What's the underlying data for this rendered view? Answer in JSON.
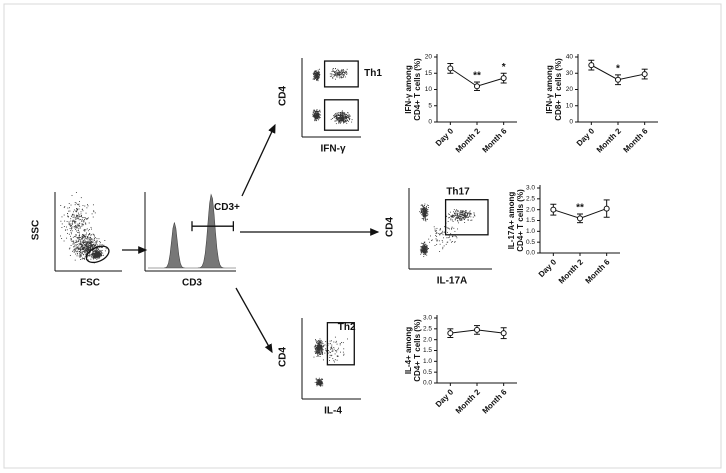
{
  "flow_panels": {
    "scatter": {
      "y_label": "SSC",
      "x_label": "FSC"
    },
    "histogram": {
      "gate": "CD3+",
      "x_label": "CD3"
    },
    "th1": {
      "y_label": "CD4",
      "x_label": "IFN-γ",
      "gate": "Th1"
    },
    "th17": {
      "y_label": "CD4",
      "x_label": "IL-17A",
      "gate": "Th17"
    },
    "th2": {
      "y_label": "CD4",
      "x_label": "IL-4",
      "gate": "Th2"
    }
  },
  "chart_data": [
    {
      "type": "line",
      "y_label": [
        "IFN-γ among",
        "CD4+ T cells (%)"
      ],
      "categories": [
        "Day 0",
        "Month 2",
        "Month 6"
      ],
      "values": [
        16.5,
        11,
        13.5
      ],
      "errors": [
        1.5,
        1.3,
        1.5
      ],
      "significance": [
        null,
        "**",
        "*"
      ],
      "ylim": [
        0,
        20
      ],
      "yticks": [
        0,
        5,
        10,
        15,
        20
      ],
      "color": "#111111"
    },
    {
      "type": "line",
      "y_label": [
        "IFN-γ among",
        "CD8+ T cells (%)"
      ],
      "categories": [
        "Day 0",
        "Month 2",
        "Month 6"
      ],
      "values": [
        35,
        26,
        29.5
      ],
      "errors": [
        3,
        3,
        3
      ],
      "significance": [
        null,
        "*",
        null
      ],
      "ylim": [
        0,
        40
      ],
      "yticks": [
        0,
        10,
        20,
        30,
        40
      ],
      "color": "#111111"
    },
    {
      "type": "line",
      "y_label": [
        "IL-17A+ among",
        "CD4+ T cells (%)"
      ],
      "categories": [
        "Day 0",
        "Month 2",
        "Month 6"
      ],
      "values": [
        2.0,
        1.6,
        2.05
      ],
      "errors": [
        0.25,
        0.2,
        0.4
      ],
      "significance": [
        null,
        "**",
        null
      ],
      "ylim": [
        0,
        3
      ],
      "yticks": [
        {
          "value": 0,
          "label": "0.0"
        },
        {
          "value": 0.5,
          "label": "0.5"
        },
        {
          "value": 1,
          "label": "1.0"
        },
        {
          "value": 1.5,
          "label": "1.5"
        },
        {
          "value": 2,
          "label": "2.0"
        },
        {
          "value": 2.5,
          "label": "2.5"
        },
        {
          "value": 3,
          "label": "3.0"
        }
      ],
      "color": "#111111"
    },
    {
      "type": "line",
      "y_label": [
        "IL-4+ among",
        "CD4+ T cells (%)"
      ],
      "categories": [
        "Day 0",
        "Month 2",
        "Month 6"
      ],
      "values": [
        2.3,
        2.45,
        2.3
      ],
      "errors": [
        0.2,
        0.2,
        0.25
      ],
      "significance": [
        null,
        null,
        null
      ],
      "ylim": [
        0,
        3
      ],
      "yticks": [
        {
          "value": 0,
          "label": "0.0"
        },
        {
          "value": 0.5,
          "label": "0.5"
        },
        {
          "value": 1,
          "label": "1.0"
        },
        {
          "value": 1.5,
          "label": "1.5"
        },
        {
          "value": 2,
          "label": "2.0"
        },
        {
          "value": 2.5,
          "label": "2.5"
        },
        {
          "value": 3,
          "label": "3.0"
        }
      ],
      "color": "#111111"
    }
  ]
}
